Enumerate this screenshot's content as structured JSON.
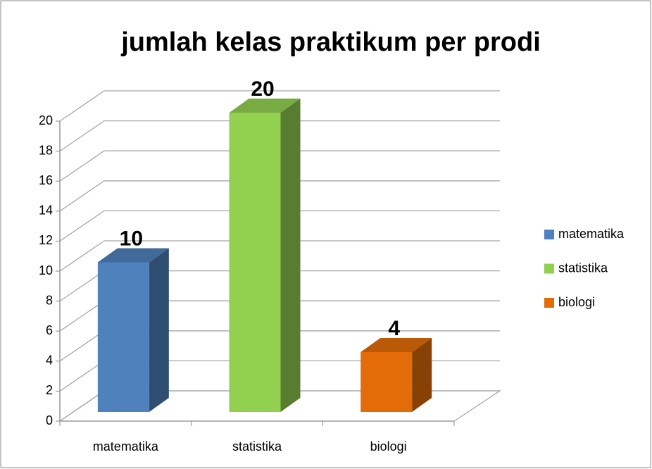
{
  "chart_data": {
    "type": "bar3d",
    "title": "jumlah kelas praktikum per prodi",
    "categories": [
      "matematika",
      "statistika",
      "biologi"
    ],
    "values": [
      10,
      20,
      4
    ],
    "colors": [
      "#4f81bd",
      "#92d050",
      "#e36c09"
    ],
    "ylim": [
      0,
      20
    ],
    "yticks": [
      0,
      2,
      4,
      6,
      8,
      10,
      12,
      14,
      16,
      18,
      20
    ],
    "grid": true,
    "legend": "right"
  }
}
